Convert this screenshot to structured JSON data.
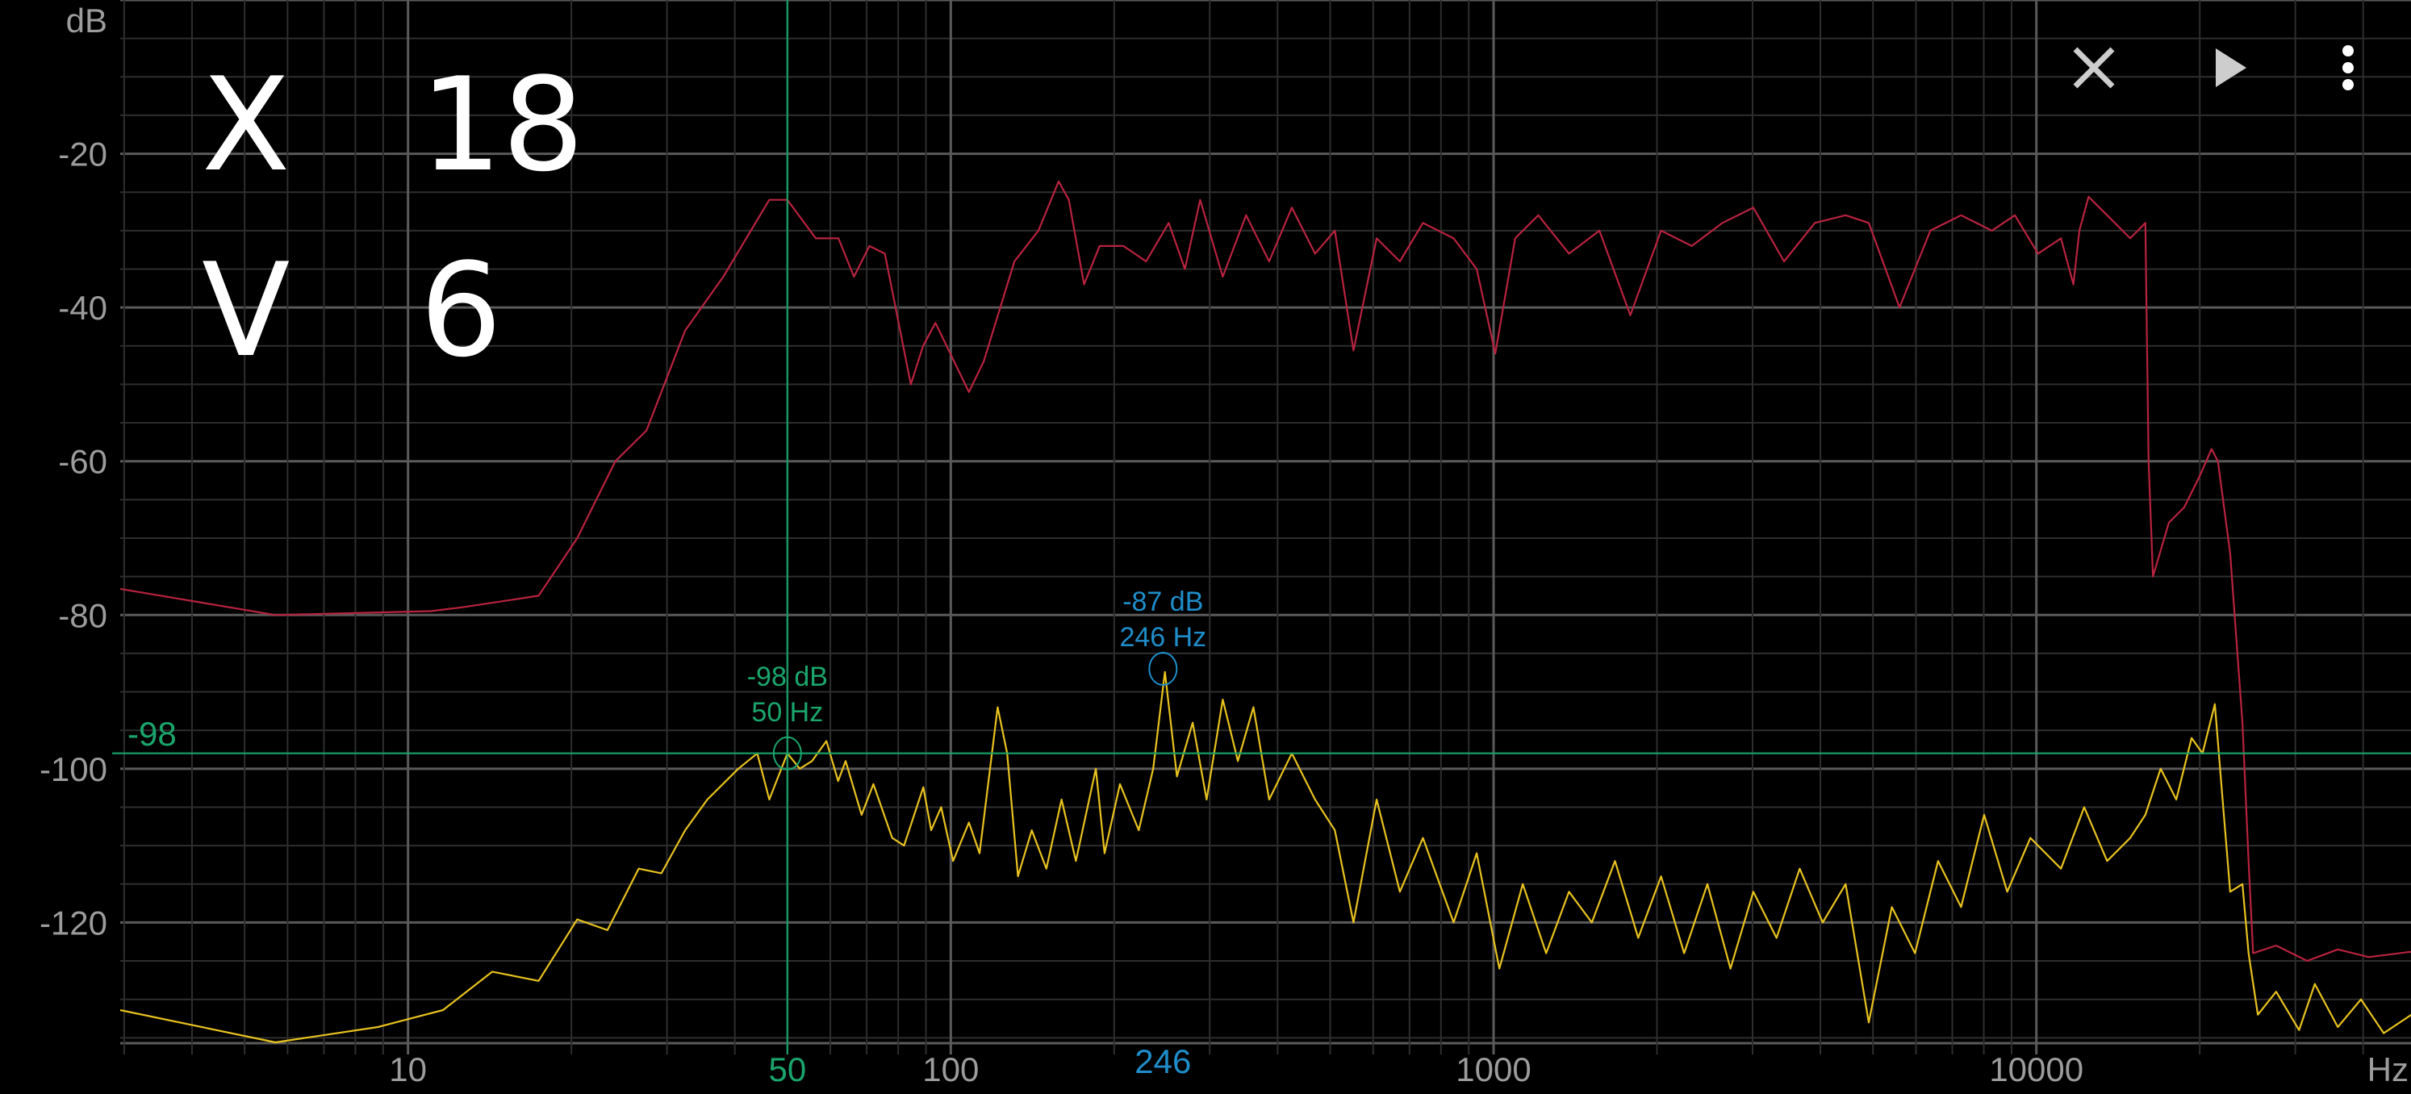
{
  "handwriting_annotation": "X 18 V 6",
  "toolbar": {
    "close_icon": "close-icon",
    "play_icon": "play-icon",
    "more_icon": "more-vert-icon"
  },
  "colors": {
    "background": "#000000",
    "series_peak": "#b8233f",
    "series_live": "#e8c21f",
    "cursor_green": "#1aa56c",
    "cursor_blue": "#1f8dc9",
    "axis_text": "#9c9c9c"
  },
  "chart_data": {
    "type": "line",
    "xscale": "log",
    "xlim": [
      2.95,
      49000
    ],
    "ylim": [
      -135.7,
      0
    ],
    "grid": true,
    "xunit": "Hz",
    "yunit": "dB",
    "xticks": [
      {
        "value": 10,
        "label": "10"
      },
      {
        "value": 100,
        "label": "100"
      },
      {
        "value": 1000,
        "label": "1000"
      },
      {
        "value": 10000,
        "label": "10000"
      }
    ],
    "yticks": [
      {
        "value": -20,
        "label": "-20"
      },
      {
        "value": -40,
        "label": "-40"
      },
      {
        "value": -60,
        "label": "-60"
      },
      {
        "value": -80,
        "label": "-80"
      },
      {
        "value": -100,
        "label": "-100"
      },
      {
        "value": -120,
        "label": "-120"
      }
    ],
    "series": [
      {
        "color": "#b8233f",
        "points": [
          [
            2.95,
            -76.6
          ],
          [
            5.7,
            -80
          ],
          [
            11,
            -79.5
          ],
          [
            12.6,
            -79
          ],
          [
            17.4,
            -77.5
          ],
          [
            20.5,
            -70
          ],
          [
            24.1,
            -60
          ],
          [
            27.5,
            -56
          ],
          [
            32.4,
            -43
          ],
          [
            38.1,
            -36
          ],
          [
            46.3,
            -26
          ],
          [
            50,
            -26
          ],
          [
            56.4,
            -31
          ],
          [
            62.1,
            -31
          ],
          [
            66.3,
            -36
          ],
          [
            70.8,
            -32
          ],
          [
            75.6,
            -33
          ],
          [
            84.4,
            -50
          ],
          [
            88.9,
            -45
          ],
          [
            93.7,
            -42
          ],
          [
            108,
            -51
          ],
          [
            115,
            -47
          ],
          [
            131,
            -34
          ],
          [
            145,
            -30
          ],
          [
            158,
            -23.6
          ],
          [
            165,
            -26
          ],
          [
            176,
            -37
          ],
          [
            188,
            -32
          ],
          [
            208,
            -32
          ],
          [
            229,
            -34
          ],
          [
            252,
            -29
          ],
          [
            270,
            -35
          ],
          [
            288,
            -26
          ],
          [
            317,
            -36
          ],
          [
            350,
            -28
          ],
          [
            386,
            -34
          ],
          [
            425,
            -27
          ],
          [
            469,
            -33
          ],
          [
            510,
            -30
          ],
          [
            552,
            -45.6
          ],
          [
            609,
            -31
          ],
          [
            672,
            -34
          ],
          [
            741,
            -29
          ],
          [
            844,
            -31
          ],
          [
            931,
            -35
          ],
          [
            1007,
            -46
          ],
          [
            1096,
            -31
          ],
          [
            1209,
            -28
          ],
          [
            1377,
            -33
          ],
          [
            1567,
            -30
          ],
          [
            1786,
            -41
          ],
          [
            2035,
            -30
          ],
          [
            2318,
            -32
          ],
          [
            2641,
            -29
          ],
          [
            3010,
            -27
          ],
          [
            3429,
            -34
          ],
          [
            3907,
            -29
          ],
          [
            4452,
            -28
          ],
          [
            4911,
            -29
          ],
          [
            5596,
            -40
          ],
          [
            6377,
            -30
          ],
          [
            7266,
            -28
          ],
          [
            8279,
            -30
          ],
          [
            9129,
            -28
          ],
          [
            10070,
            -33
          ],
          [
            11100,
            -31
          ],
          [
            11700,
            -37
          ],
          [
            12000,
            -30
          ],
          [
            12480,
            -25.6
          ],
          [
            13500,
            -28
          ],
          [
            14890,
            -31
          ],
          [
            15880,
            -29
          ],
          [
            16100,
            -60
          ],
          [
            16400,
            -75
          ],
          [
            17540,
            -68
          ],
          [
            18720,
            -66
          ],
          [
            19970,
            -62
          ],
          [
            21030,
            -58.4
          ],
          [
            21600,
            -60
          ],
          [
            22750,
            -72
          ],
          [
            23970,
            -94
          ],
          [
            24600,
            -112
          ],
          [
            25080,
            -124
          ],
          [
            27660,
            -123
          ],
          [
            31540,
            -125
          ],
          [
            35920,
            -123.5
          ],
          [
            40950,
            -124.5
          ],
          [
            49100,
            -123.8
          ]
        ]
      },
      {
        "color": "#e8c21f",
        "points": [
          [
            2.95,
            -131.4
          ],
          [
            5.7,
            -135.6
          ],
          [
            8.8,
            -133.6
          ],
          [
            11.6,
            -131.4
          ],
          [
            14.3,
            -126.4
          ],
          [
            17.4,
            -127.6
          ],
          [
            20.5,
            -119.6
          ],
          [
            23.3,
            -121
          ],
          [
            26.6,
            -113
          ],
          [
            29.3,
            -113.6
          ],
          [
            32.4,
            -108
          ],
          [
            35.6,
            -104
          ],
          [
            40.6,
            -100
          ],
          [
            44,
            -98
          ],
          [
            46.3,
            -104
          ],
          [
            50,
            -98
          ],
          [
            52.7,
            -100
          ],
          [
            55.5,
            -99
          ],
          [
            59,
            -96.4
          ],
          [
            62,
            -101.6
          ],
          [
            64,
            -99
          ],
          [
            68.5,
            -106
          ],
          [
            72,
            -102
          ],
          [
            78,
            -109
          ],
          [
            82,
            -110
          ],
          [
            89,
            -102.4
          ],
          [
            92,
            -108
          ],
          [
            96,
            -105
          ],
          [
            101,
            -112
          ],
          [
            108,
            -107
          ],
          [
            113,
            -111
          ],
          [
            122,
            -92
          ],
          [
            127,
            -98
          ],
          [
            133,
            -114
          ],
          [
            141,
            -108
          ],
          [
            150,
            -113
          ],
          [
            160,
            -104
          ],
          [
            170,
            -112
          ],
          [
            185,
            -100
          ],
          [
            192,
            -111
          ],
          [
            205,
            -102
          ],
          [
            222,
            -108
          ],
          [
            236,
            -100
          ],
          [
            248,
            -87.4
          ],
          [
            261,
            -101
          ],
          [
            279,
            -94
          ],
          [
            296,
            -104
          ],
          [
            317,
            -91
          ],
          [
            338,
            -99
          ],
          [
            361,
            -92
          ],
          [
            386,
            -104
          ],
          [
            425,
            -98
          ],
          [
            469,
            -104
          ],
          [
            510,
            -108
          ],
          [
            552,
            -120
          ],
          [
            609,
            -104
          ],
          [
            672,
            -116
          ],
          [
            741,
            -109
          ],
          [
            844,
            -120
          ],
          [
            931,
            -111
          ],
          [
            1025,
            -126
          ],
          [
            1132,
            -115
          ],
          [
            1250,
            -124
          ],
          [
            1377,
            -116
          ],
          [
            1517,
            -120
          ],
          [
            1674,
            -112
          ],
          [
            1847,
            -122
          ],
          [
            2035,
            -114
          ],
          [
            2244,
            -124
          ],
          [
            2477,
            -115
          ],
          [
            2732,
            -126
          ],
          [
            3010,
            -116
          ],
          [
            3321,
            -122
          ],
          [
            3664,
            -113
          ],
          [
            4040,
            -120
          ],
          [
            4452,
            -115
          ],
          [
            4911,
            -133
          ],
          [
            5416,
            -118
          ],
          [
            5975,
            -124
          ],
          [
            6590,
            -112
          ],
          [
            7266,
            -118
          ],
          [
            8012,
            -106
          ],
          [
            8836,
            -116
          ],
          [
            9750,
            -109
          ],
          [
            11100,
            -113
          ],
          [
            12250,
            -105
          ],
          [
            13500,
            -112
          ],
          [
            14890,
            -109
          ],
          [
            15880,
            -106
          ],
          [
            16940,
            -100
          ],
          [
            18100,
            -104
          ],
          [
            19320,
            -96
          ],
          [
            20230,
            -98
          ],
          [
            21320,
            -91.6
          ],
          [
            22030,
            -104
          ],
          [
            22750,
            -116
          ],
          [
            23970,
            -115
          ],
          [
            24600,
            -124
          ],
          [
            25590,
            -132
          ],
          [
            27660,
            -129
          ],
          [
            30480,
            -134
          ],
          [
            32580,
            -128
          ],
          [
            35920,
            -133.6
          ],
          [
            39630,
            -130
          ],
          [
            43650,
            -134.4
          ],
          [
            49100,
            -132
          ]
        ]
      }
    ],
    "cursors": [
      {
        "freq": 50,
        "db": -98,
        "db_label": "-98 dB",
        "freq_label": "50 Hz",
        "axis_x_label": "50",
        "axis_y_label": "-98",
        "color": "#1aa56c"
      },
      {
        "freq": 246,
        "db": -87,
        "db_label": "-87 dB",
        "freq_label": "246 Hz",
        "axis_x_label": "246",
        "color": "#1f8dc9"
      }
    ]
  }
}
